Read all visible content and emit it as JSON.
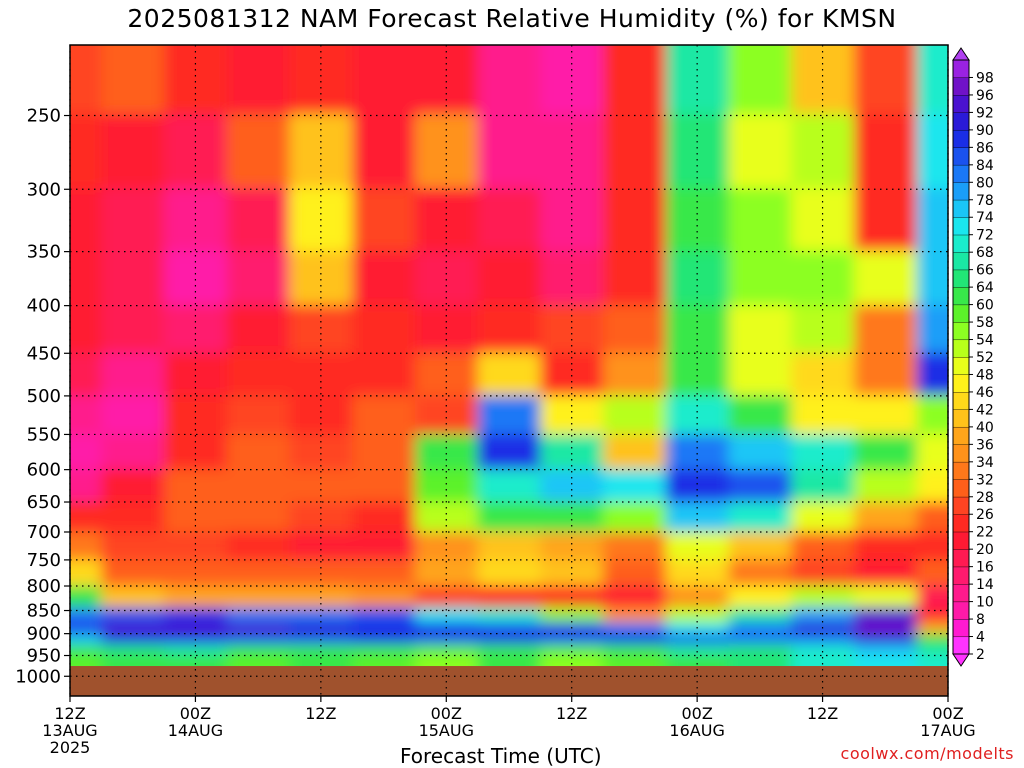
{
  "title": "2025081312 NAM Forecast Relative Humidity (%) for KMSN",
  "x_axis_title": "Forecast Time (UTC)",
  "credit": "coolwx.com/modelts",
  "colors": {
    "ground": "#a0522d",
    "frame": "#000000",
    "credit": "#e02020"
  },
  "chart_data": {
    "type": "heatmap",
    "title": "2025081312 NAM Forecast Relative Humidity (%) for KMSN",
    "xlabel": "Forecast Time (UTC)",
    "ylabel": "",
    "y_scale": "log-pressure (inverted)",
    "ylim": [
      1050,
      210
    ],
    "y_ticks": [
      250,
      300,
      350,
      400,
      450,
      500,
      550,
      600,
      650,
      700,
      750,
      800,
      850,
      900,
      950,
      1000
    ],
    "x_ticks": [
      {
        "t": 0,
        "line1": "12Z",
        "line2": "13AUG",
        "line3": "2025"
      },
      {
        "t": 12,
        "line1": "00Z",
        "line2": "14AUG",
        "line3": ""
      },
      {
        "t": 24,
        "line1": "12Z",
        "line2": "",
        "line3": ""
      },
      {
        "t": 36,
        "line1": "00Z",
        "line2": "15AUG",
        "line3": ""
      },
      {
        "t": 48,
        "line1": "12Z",
        "line2": "",
        "line3": ""
      },
      {
        "t": 60,
        "line1": "00Z",
        "line2": "16AUG",
        "line3": ""
      },
      {
        "t": 72,
        "line1": "12Z",
        "line2": "",
        "line3": ""
      },
      {
        "t": 84,
        "line1": "00Z",
        "line2": "17AUG",
        "line3": ""
      }
    ],
    "xlim": [
      0,
      84
    ],
    "grid": true,
    "ground_pressure": 975,
    "colorbar_labels": [
      2,
      4,
      8,
      10,
      14,
      16,
      20,
      22,
      26,
      28,
      32,
      34,
      36,
      40,
      42,
      46,
      48,
      52,
      54,
      58,
      60,
      64,
      66,
      68,
      72,
      74,
      78,
      80,
      84,
      86,
      90,
      92,
      96,
      98
    ],
    "colorbar_colors": [
      "#ff33ff",
      "#ff1ad1",
      "#ff1aa8",
      "#ff1a8c",
      "#ff1a6e",
      "#ff1a52",
      "#ff1a33",
      "#ff2a22",
      "#ff4422",
      "#ff5f1a",
      "#ff781a",
      "#ff921a",
      "#ffa51a",
      "#ffc21a",
      "#ffd91a",
      "#fff11a",
      "#e8ff1a",
      "#b8ff1a",
      "#8cff22",
      "#5cf22a",
      "#38e84a",
      "#22e676",
      "#1ae8a4",
      "#1aeccc",
      "#1ae6ee",
      "#1ac6f6",
      "#1a9ef8",
      "#1a78f6",
      "#1a52ee",
      "#1a2ee6",
      "#2a1ad8",
      "#4a12d0",
      "#7012c8",
      "#9a22e2"
    ],
    "legend_placement": "right",
    "rh_field": {
      "times": [
        0,
        6,
        12,
        18,
        24,
        30,
        36,
        42,
        48,
        54,
        60,
        66,
        72,
        78,
        84
      ],
      "levels": [
        225,
        275,
        325,
        375,
        425,
        475,
        525,
        575,
        625,
        675,
        725,
        775,
        825,
        862,
        887,
        912,
        937,
        962
      ],
      "values": [
        [
          26,
          28,
          22,
          20,
          22,
          20,
          20,
          10,
          8,
          24,
          66,
          56,
          40,
          26,
          70
        ],
        [
          24,
          20,
          16,
          30,
          40,
          20,
          34,
          12,
          10,
          24,
          64,
          48,
          52,
          22,
          72
        ],
        [
          20,
          16,
          10,
          18,
          46,
          26,
          20,
          18,
          10,
          24,
          62,
          56,
          50,
          22,
          74
        ],
        [
          20,
          18,
          8,
          14,
          40,
          20,
          18,
          20,
          14,
          22,
          64,
          54,
          54,
          48,
          74
        ],
        [
          20,
          16,
          14,
          20,
          26,
          22,
          20,
          22,
          26,
          30,
          60,
          48,
          52,
          32,
          78
        ],
        [
          16,
          12,
          20,
          22,
          24,
          22,
          30,
          42,
          24,
          34,
          60,
          50,
          44,
          32,
          86
        ],
        [
          10,
          8,
          22,
          26,
          22,
          28,
          26,
          80,
          46,
          52,
          68,
          60,
          46,
          46,
          56
        ],
        [
          8,
          12,
          24,
          28,
          26,
          28,
          62,
          88,
          66,
          40,
          80,
          74,
          70,
          62,
          48
        ],
        [
          12,
          20,
          28,
          30,
          28,
          28,
          58,
          70,
          74,
          72,
          86,
          84,
          66,
          52,
          46
        ],
        [
          22,
          24,
          28,
          28,
          26,
          24,
          52,
          60,
          60,
          56,
          76,
          70,
          48,
          38,
          30
        ],
        [
          32,
          26,
          26,
          22,
          20,
          20,
          34,
          40,
          38,
          32,
          50,
          40,
          30,
          22,
          24
        ],
        [
          44,
          30,
          30,
          28,
          28,
          30,
          38,
          44,
          40,
          30,
          44,
          32,
          26,
          20,
          28
        ],
        [
          62,
          40,
          38,
          36,
          36,
          34,
          26,
          24,
          22,
          20,
          34,
          46,
          52,
          50,
          18
        ],
        [
          80,
          84,
          86,
          80,
          80,
          84,
          72,
          70,
          56,
          34,
          52,
          66,
          78,
          94,
          20
        ],
        [
          88,
          92,
          94,
          92,
          90,
          88,
          86,
          84,
          86,
          82,
          72,
          80,
          90,
          96,
          36
        ],
        [
          74,
          86,
          88,
          84,
          84,
          88,
          84,
          86,
          84,
          86,
          84,
          82,
          82,
          90,
          60
        ],
        [
          62,
          64,
          66,
          60,
          62,
          60,
          58,
          62,
          58,
          60,
          66,
          64,
          70,
          76,
          66
        ],
        [
          58,
          60,
          62,
          58,
          60,
          58,
          56,
          60,
          56,
          58,
          62,
          64,
          68,
          72,
          70
        ]
      ]
    }
  }
}
